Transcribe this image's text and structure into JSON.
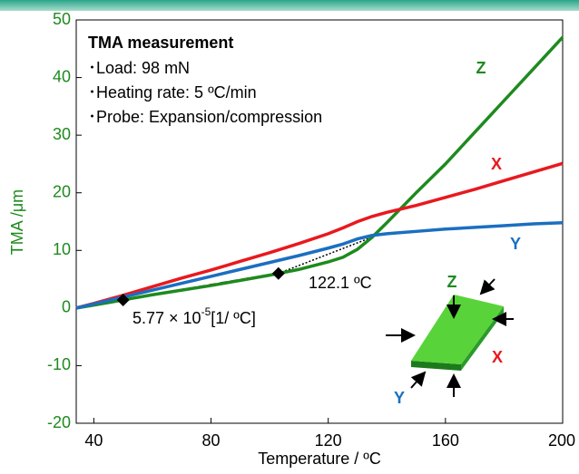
{
  "chart_data": {
    "type": "line",
    "x_label": "Temperature / ºC",
    "y_label": "TMA /μm",
    "xlim": [
      34,
      200
    ],
    "xticks": [
      40,
      80,
      120,
      160,
      200
    ],
    "ylim": [
      -20,
      50
    ],
    "yticks": [
      -20,
      -10,
      0,
      10,
      20,
      30,
      40,
      50
    ],
    "x": [
      34,
      40,
      50,
      60,
      70,
      80,
      90,
      100,
      110,
      120,
      125,
      130,
      135,
      140,
      150,
      160,
      170,
      180,
      190,
      200
    ],
    "series": [
      {
        "name": "Z",
        "color": "#1e8a1e",
        "values": [
          0,
          0.5,
          1.4,
          2.3,
          3.1,
          3.9,
          4.8,
          5.7,
          6.7,
          8,
          8.8,
          10.2,
          12.3,
          14.8,
          20,
          25,
          30.5,
          36,
          41.5,
          47
        ]
      },
      {
        "name": "X",
        "color": "#e8191e",
        "values": [
          0,
          0.8,
          2.2,
          3.7,
          5.2,
          6.6,
          8.1,
          9.6,
          11.2,
          12.9,
          13.9,
          15,
          15.9,
          16.6,
          17.8,
          19.2,
          20.6,
          22.1,
          23.6,
          25.1
        ]
      },
      {
        "name": "Y",
        "color": "#1a6fc0",
        "values": [
          0,
          0.7,
          1.9,
          3.1,
          4.3,
          5.5,
          6.7,
          7.9,
          9.1,
          10.4,
          11.1,
          12,
          12.6,
          12.9,
          13.3,
          13.7,
          14,
          14.3,
          14.6,
          14.8
        ]
      }
    ],
    "markers": {
      "x": [
        50,
        103
      ],
      "values": [
        1.4,
        6
      ]
    },
    "tangent": {
      "x": [
        103,
        135
      ],
      "values": [
        6,
        12.3
      ]
    },
    "info": {
      "title": "TMA measurement",
      "items": [
        "･Load: 98 mN",
        "･Heating rate: 5 ºC/min",
        "･Probe: Expansion/compression"
      ]
    },
    "annotations": {
      "onset": "122.1 ºC",
      "cte_base": "5.77 × 10",
      "cte_exp": "-5",
      "cte_unit": "[1/ ºC]"
    },
    "inset_labels": [
      "Z",
      "X",
      "Y"
    ]
  }
}
